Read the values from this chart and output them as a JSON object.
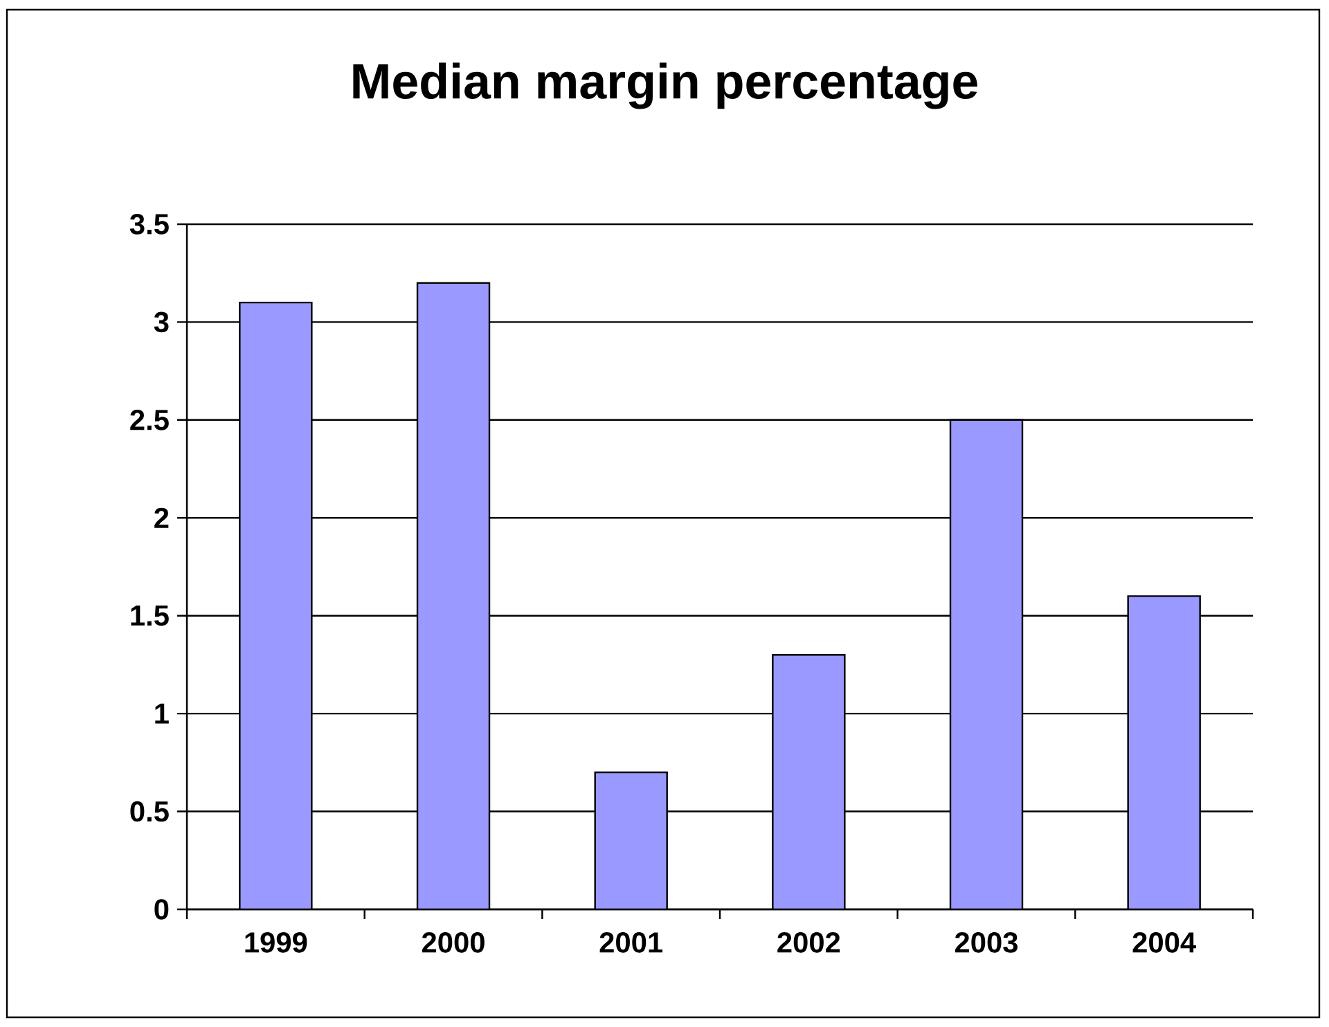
{
  "chart_data": {
    "type": "bar",
    "title": "Median margin percentage",
    "categories": [
      "1999",
      "2000",
      "2001",
      "2002",
      "2003",
      "2004"
    ],
    "values": [
      3.1,
      3.2,
      0.7,
      1.3,
      2.5,
      1.6
    ],
    "color": "#9999ff",
    "ylim": [
      0,
      3.5
    ],
    "yticks": [
      0,
      0.5,
      1,
      1.5,
      2,
      2.5,
      3,
      3.5
    ],
    "grid": "y"
  }
}
